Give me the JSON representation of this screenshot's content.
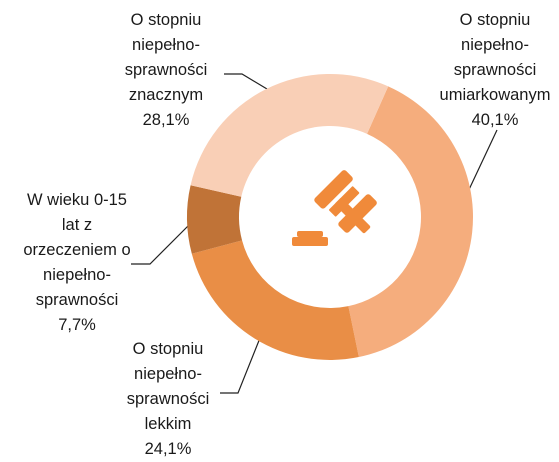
{
  "chart_data": {
    "type": "donut",
    "categories": [
      "O stopniu\nniepełno-\nsprawności\numiarkowanym",
      "O stopniu\nniepełno-\nsprawności\nlekkim",
      "W wieku 0-15\nlat z\norzeczeniem o\nniepełno-\nsprawności",
      "O stopniu\nniepełno-\nsprawności\nznacznym"
    ],
    "values": [
      40.1,
      24.1,
      7.7,
      28.1
    ],
    "value_labels": [
      "40,1%",
      "24,1%",
      "7,7%",
      "28,1%"
    ],
    "colors": [
      "#f5ad7d",
      "#e98e46",
      "#c07337",
      "#f9cfb6"
    ]
  }
}
